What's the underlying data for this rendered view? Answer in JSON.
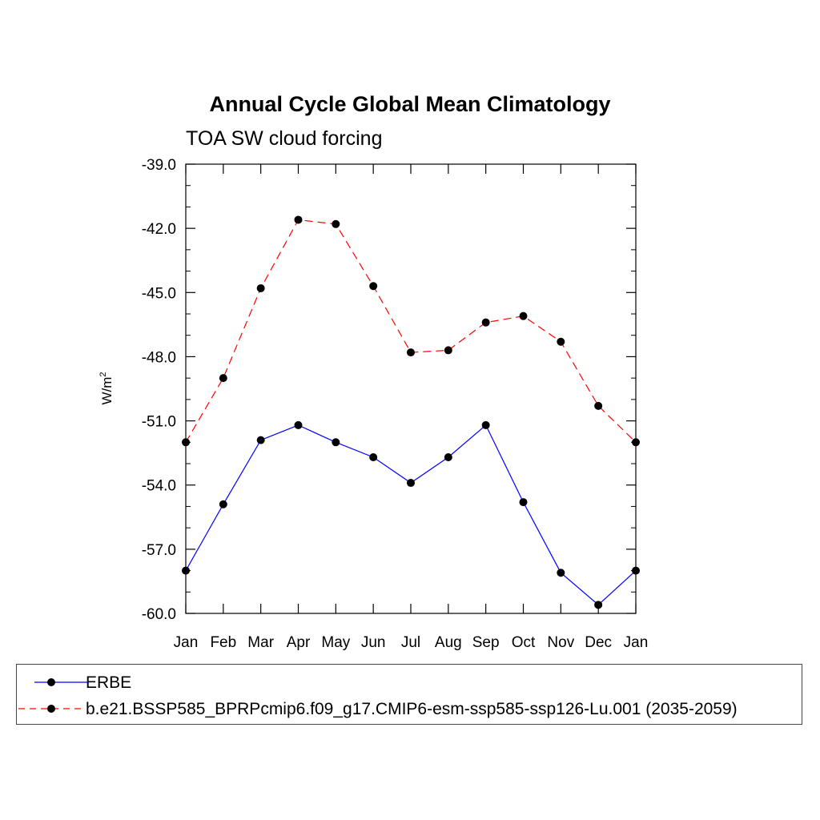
{
  "chart_data": {
    "type": "line",
    "title": "Annual Cycle Global Mean Climatology",
    "subtitle": "TOA SW cloud forcing",
    "ylabel": "W/m",
    "ylabel_superscript": "2",
    "categories": [
      "Jan",
      "Feb",
      "Mar",
      "Apr",
      "May",
      "Jun",
      "Jul",
      "Aug",
      "Sep",
      "Oct",
      "Nov",
      "Dec",
      "Jan"
    ],
    "ylim": [
      -60.0,
      -39.0
    ],
    "yticks": [
      "-39.0",
      "-42.0",
      "-45.0",
      "-48.0",
      "-51.0",
      "-54.0",
      "-57.0",
      "-60.0"
    ],
    "series": [
      {
        "name": "ERBE",
        "color": "#0000ff",
        "dash": "solid",
        "values": [
          -58.0,
          -54.9,
          -51.9,
          -51.2,
          -52.0,
          -52.7,
          -53.9,
          -52.7,
          -51.2,
          -54.8,
          -58.1,
          -59.6,
          -58.0
        ]
      },
      {
        "name": "b.e21.BSSP585_BPRPcmip6.f09_g17.CMIP6-esm-ssp585-ssp126-Lu.001 (2035-2059)",
        "color": "#ff0000",
        "dash": "dashed",
        "values": [
          -52.0,
          -49.0,
          -44.8,
          -41.6,
          -41.8,
          -44.7,
          -47.8,
          -47.7,
          -46.4,
          -46.1,
          -47.3,
          -50.3,
          -52.0
        ]
      }
    ],
    "legend_position": "bottom"
  }
}
